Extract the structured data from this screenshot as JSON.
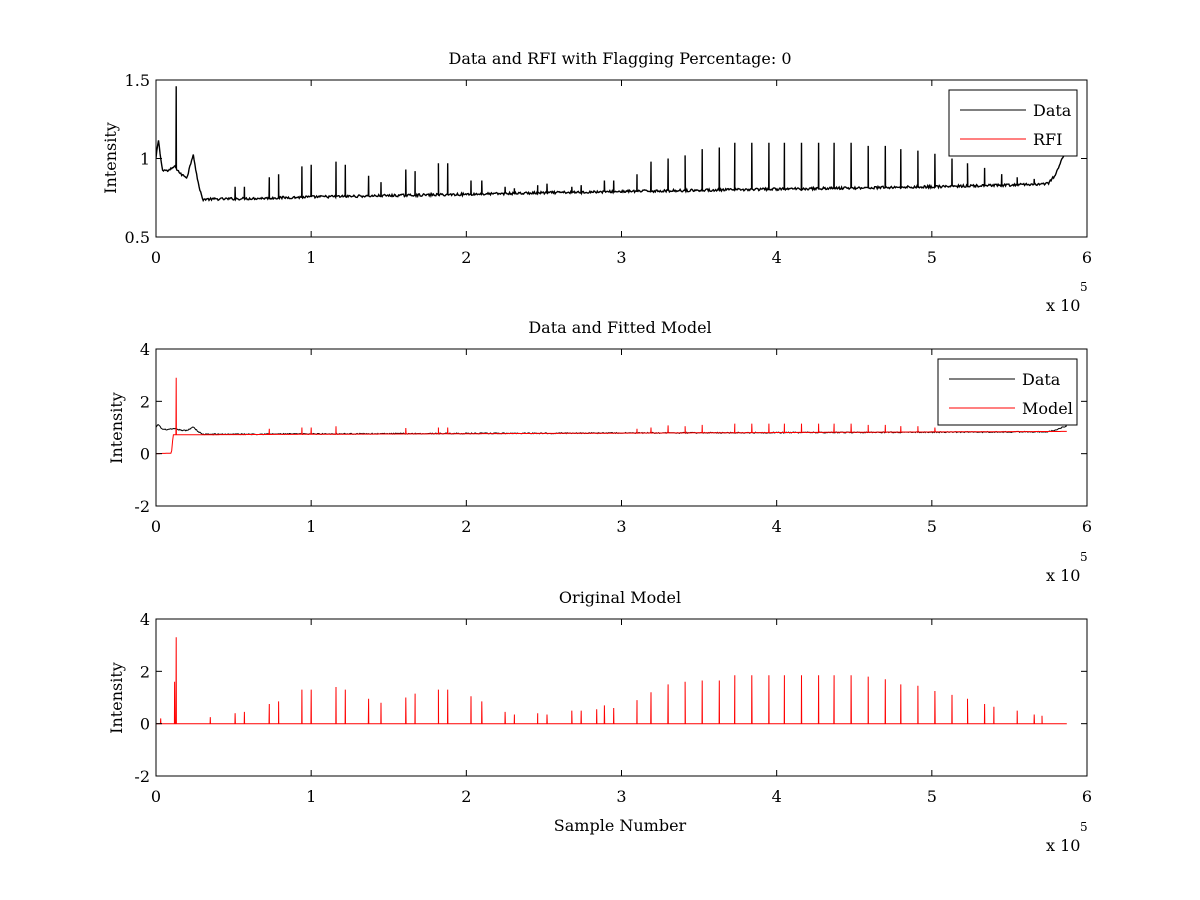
{
  "figure": {
    "background": "#ffffff"
  },
  "chart_data": [
    {
      "type": "line",
      "title": "Data and RFI with Flagging Percentage: 0",
      "xlabel": "",
      "ylabel": "Intensity",
      "xlim": [
        0,
        600000
      ],
      "ylim": [
        0.5,
        1.5
      ],
      "x_ticks": [
        "0",
        "1",
        "2",
        "3",
        "4",
        "5",
        "6"
      ],
      "y_ticks": [
        "0.5",
        "1",
        "1.5"
      ],
      "x_multiplier": {
        "base": "x 10",
        "exponent": "5"
      },
      "legend": {
        "position": "top-right",
        "entries": [
          "Data",
          "RFI"
        ]
      },
      "series": [
        {
          "name": "Data",
          "color": "#000000",
          "baseline": [
            [
              0,
              1.0
            ],
            [
              1500,
              1.12
            ],
            [
              4000,
              0.93
            ],
            [
              8000,
              0.92
            ],
            [
              12000,
              0.95
            ],
            [
              16000,
              0.9
            ],
            [
              20000,
              0.88
            ],
            [
              24000,
              1.03
            ],
            [
              27000,
              0.85
            ],
            [
              30000,
              0.74
            ],
            [
              60000,
              0.745
            ],
            [
              100000,
              0.755
            ],
            [
              200000,
              0.772
            ],
            [
              300000,
              0.79
            ],
            [
              400000,
              0.805
            ],
            [
              500000,
              0.82
            ],
            [
              550000,
              0.83
            ],
            [
              575000,
              0.84
            ],
            [
              580000,
              0.9
            ],
            [
              584000,
              1.0
            ],
            [
              587000,
              1.05
            ]
          ],
          "noise": 0.008,
          "spikes": [
            {
              "x": 13000,
              "y": 1.46
            },
            {
              "x": 51000,
              "y": 0.82
            },
            {
              "x": 57000,
              "y": 0.82
            },
            {
              "x": 73000,
              "y": 0.88
            },
            {
              "x": 79000,
              "y": 0.9
            },
            {
              "x": 94000,
              "y": 0.95
            },
            {
              "x": 100000,
              "y": 0.96
            },
            {
              "x": 116000,
              "y": 0.98
            },
            {
              "x": 122000,
              "y": 0.96
            },
            {
              "x": 137000,
              "y": 0.89
            },
            {
              "x": 145000,
              "y": 0.85
            },
            {
              "x": 161000,
              "y": 0.93
            },
            {
              "x": 167000,
              "y": 0.92
            },
            {
              "x": 182000,
              "y": 0.97
            },
            {
              "x": 188000,
              "y": 0.97
            },
            {
              "x": 203000,
              "y": 0.86
            },
            {
              "x": 210000,
              "y": 0.86
            },
            {
              "x": 225000,
              "y": 0.82
            },
            {
              "x": 231000,
              "y": 0.81
            },
            {
              "x": 246000,
              "y": 0.83
            },
            {
              "x": 252000,
              "y": 0.84
            },
            {
              "x": 268000,
              "y": 0.82
            },
            {
              "x": 274000,
              "y": 0.83
            },
            {
              "x": 289000,
              "y": 0.86
            },
            {
              "x": 295000,
              "y": 0.86
            },
            {
              "x": 310000,
              "y": 0.9
            },
            {
              "x": 319000,
              "y": 0.98
            },
            {
              "x": 330000,
              "y": 1.0
            },
            {
              "x": 341000,
              "y": 1.02
            },
            {
              "x": 352000,
              "y": 1.06
            },
            {
              "x": 363000,
              "y": 1.07
            },
            {
              "x": 373000,
              "y": 1.1
            },
            {
              "x": 384000,
              "y": 1.1
            },
            {
              "x": 395000,
              "y": 1.1
            },
            {
              "x": 405000,
              "y": 1.1
            },
            {
              "x": 416000,
              "y": 1.1
            },
            {
              "x": 427000,
              "y": 1.1
            },
            {
              "x": 437000,
              "y": 1.1
            },
            {
              "x": 448000,
              "y": 1.1
            },
            {
              "x": 459000,
              "y": 1.08
            },
            {
              "x": 470000,
              "y": 1.08
            },
            {
              "x": 480000,
              "y": 1.06
            },
            {
              "x": 491000,
              "y": 1.05
            },
            {
              "x": 502000,
              "y": 1.03
            },
            {
              "x": 513000,
              "y": 1.0
            },
            {
              "x": 523000,
              "y": 0.97
            },
            {
              "x": 534000,
              "y": 0.94
            },
            {
              "x": 545000,
              "y": 0.9
            },
            {
              "x": 555000,
              "y": 0.88
            },
            {
              "x": 566000,
              "y": 0.87
            }
          ]
        },
        {
          "name": "RFI",
          "color": "#ff0000",
          "points": []
        }
      ]
    },
    {
      "type": "line",
      "title": "Data and Fitted Model",
      "xlabel": "",
      "ylabel": "Intensity",
      "xlim": [
        0,
        600000
      ],
      "ylim": [
        -2,
        4
      ],
      "x_ticks": [
        "0",
        "1",
        "2",
        "3",
        "4",
        "5",
        "6"
      ],
      "y_ticks": [
        "-2",
        "0",
        "2",
        "4"
      ],
      "x_multiplier": {
        "base": "x 10",
        "exponent": "5"
      },
      "legend": {
        "position": "top-right",
        "entries": [
          "Data",
          "Model"
        ]
      },
      "series": [
        {
          "name": "Data",
          "color": "#000000",
          "baseline": [
            [
              0,
              1.0
            ],
            [
              1500,
              1.12
            ],
            [
              4000,
              0.93
            ],
            [
              8000,
              0.92
            ],
            [
              12000,
              0.95
            ],
            [
              16000,
              0.9
            ],
            [
              20000,
              0.88
            ],
            [
              24000,
              1.03
            ],
            [
              27000,
              0.85
            ],
            [
              30000,
              0.74
            ],
            [
              60000,
              0.745
            ],
            [
              100000,
              0.755
            ],
            [
              200000,
              0.772
            ],
            [
              300000,
              0.79
            ],
            [
              400000,
              0.805
            ],
            [
              500000,
              0.82
            ],
            [
              550000,
              0.83
            ],
            [
              575000,
              0.84
            ],
            [
              580000,
              0.9
            ],
            [
              584000,
              1.0
            ],
            [
              587000,
              1.05
            ]
          ],
          "noise": 0.02,
          "spikes": []
        },
        {
          "name": "Model",
          "color": "#ff0000",
          "baseline": [
            [
              0,
              0.0
            ],
            [
              10000,
              0.02
            ],
            [
              11000,
              0.72
            ],
            [
              587000,
              0.85
            ]
          ],
          "noise": 0.0,
          "spikes": [
            {
              "x": 13000,
              "y": 2.9
            },
            {
              "x": 73000,
              "y": 0.95
            },
            {
              "x": 94000,
              "y": 1.0
            },
            {
              "x": 100000,
              "y": 1.0
            },
            {
              "x": 116000,
              "y": 1.05
            },
            {
              "x": 161000,
              "y": 0.98
            },
            {
              "x": 182000,
              "y": 1.0
            },
            {
              "x": 188000,
              "y": 1.0
            },
            {
              "x": 310000,
              "y": 0.95
            },
            {
              "x": 319000,
              "y": 1.0
            },
            {
              "x": 330000,
              "y": 1.08
            },
            {
              "x": 341000,
              "y": 1.05
            },
            {
              "x": 352000,
              "y": 1.1
            },
            {
              "x": 373000,
              "y": 1.15
            },
            {
              "x": 384000,
              "y": 1.15
            },
            {
              "x": 395000,
              "y": 1.15
            },
            {
              "x": 405000,
              "y": 1.15
            },
            {
              "x": 416000,
              "y": 1.15
            },
            {
              "x": 427000,
              "y": 1.15
            },
            {
              "x": 437000,
              "y": 1.15
            },
            {
              "x": 448000,
              "y": 1.15
            },
            {
              "x": 459000,
              "y": 1.1
            },
            {
              "x": 470000,
              "y": 1.1
            },
            {
              "x": 480000,
              "y": 1.05
            },
            {
              "x": 491000,
              "y": 1.05
            },
            {
              "x": 502000,
              "y": 1.0
            }
          ]
        }
      ]
    },
    {
      "type": "line",
      "title": "Original Model",
      "xlabel": "Sample Number",
      "ylabel": "Intensity",
      "xlim": [
        0,
        600000
      ],
      "ylim": [
        -2,
        4
      ],
      "x_ticks": [
        "0",
        "1",
        "2",
        "3",
        "4",
        "5",
        "6"
      ],
      "y_ticks": [
        "-2",
        "0",
        "2",
        "4"
      ],
      "x_multiplier": {
        "base": "x 10",
        "exponent": "5"
      },
      "legend": null,
      "series": [
        {
          "name": "Model",
          "color": "#ff0000",
          "baseline": [
            [
              0,
              0.0
            ],
            [
              587000,
              0.0
            ]
          ],
          "noise": 0.0,
          "spikes": [
            {
              "x": 3000,
              "y": 0.2
            },
            {
              "x": 12000,
              "y": 1.6
            },
            {
              "x": 13000,
              "y": 3.3
            },
            {
              "x": 35000,
              "y": 0.25
            },
            {
              "x": 51000,
              "y": 0.4
            },
            {
              "x": 57000,
              "y": 0.45
            },
            {
              "x": 73000,
              "y": 0.75
            },
            {
              "x": 79000,
              "y": 0.85
            },
            {
              "x": 94000,
              "y": 1.3
            },
            {
              "x": 100000,
              "y": 1.3
            },
            {
              "x": 116000,
              "y": 1.4
            },
            {
              "x": 122000,
              "y": 1.3
            },
            {
              "x": 137000,
              "y": 0.95
            },
            {
              "x": 145000,
              "y": 0.8
            },
            {
              "x": 161000,
              "y": 1.0
            },
            {
              "x": 167000,
              "y": 1.15
            },
            {
              "x": 182000,
              "y": 1.3
            },
            {
              "x": 188000,
              "y": 1.3
            },
            {
              "x": 203000,
              "y": 1.05
            },
            {
              "x": 210000,
              "y": 0.85
            },
            {
              "x": 225000,
              "y": 0.45
            },
            {
              "x": 231000,
              "y": 0.35
            },
            {
              "x": 246000,
              "y": 0.4
            },
            {
              "x": 252000,
              "y": 0.35
            },
            {
              "x": 268000,
              "y": 0.5
            },
            {
              "x": 274000,
              "y": 0.5
            },
            {
              "x": 284000,
              "y": 0.55
            },
            {
              "x": 289000,
              "y": 0.7
            },
            {
              "x": 295000,
              "y": 0.6
            },
            {
              "x": 310000,
              "y": 0.9
            },
            {
              "x": 319000,
              "y": 1.2
            },
            {
              "x": 330000,
              "y": 1.5
            },
            {
              "x": 341000,
              "y": 1.6
            },
            {
              "x": 352000,
              "y": 1.65
            },
            {
              "x": 363000,
              "y": 1.65
            },
            {
              "x": 373000,
              "y": 1.85
            },
            {
              "x": 384000,
              "y": 1.85
            },
            {
              "x": 395000,
              "y": 1.85
            },
            {
              "x": 405000,
              "y": 1.85
            },
            {
              "x": 416000,
              "y": 1.85
            },
            {
              "x": 427000,
              "y": 1.85
            },
            {
              "x": 437000,
              "y": 1.85
            },
            {
              "x": 448000,
              "y": 1.85
            },
            {
              "x": 459000,
              "y": 1.8
            },
            {
              "x": 470000,
              "y": 1.7
            },
            {
              "x": 480000,
              "y": 1.5
            },
            {
              "x": 491000,
              "y": 1.45
            },
            {
              "x": 502000,
              "y": 1.25
            },
            {
              "x": 513000,
              "y": 1.1
            },
            {
              "x": 523000,
              "y": 0.95
            },
            {
              "x": 534000,
              "y": 0.75
            },
            {
              "x": 540000,
              "y": 0.65
            },
            {
              "x": 555000,
              "y": 0.5
            },
            {
              "x": 566000,
              "y": 0.35
            },
            {
              "x": 571000,
              "y": 0.3
            }
          ]
        }
      ]
    }
  ]
}
